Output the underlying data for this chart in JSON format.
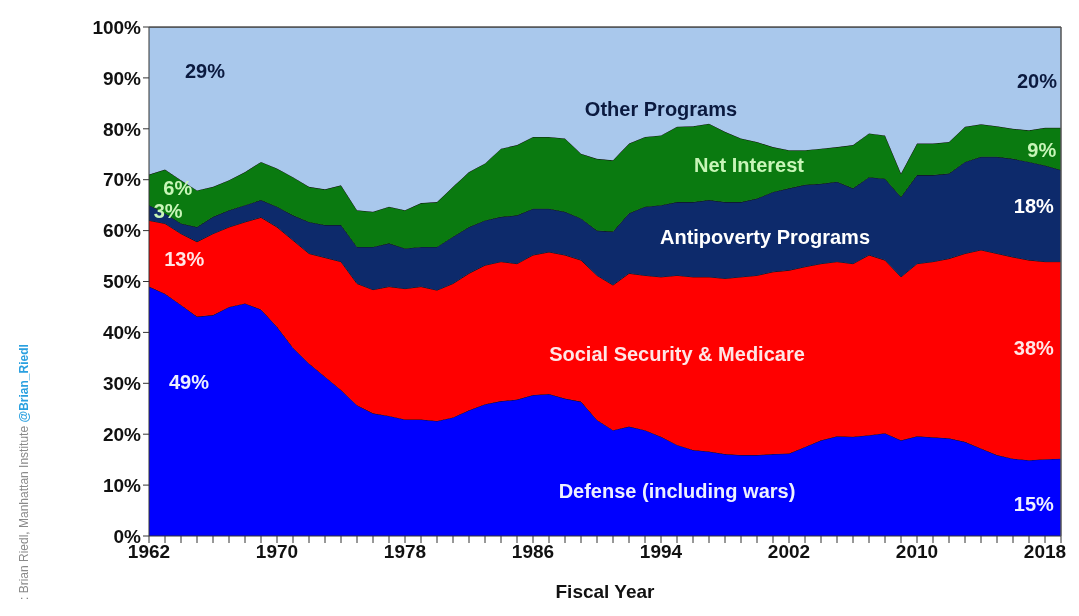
{
  "chart_data": {
    "type": "area",
    "stacked": true,
    "xlabel": "Fiscal Year",
    "xlim": [
      1962,
      2019
    ],
    "xticks": [
      1962,
      {
        "value": 1963,
        "label": null
      },
      {
        "value": 1964,
        "label": null
      },
      {
        "value": 1965,
        "label": null
      },
      {
        "value": 1966,
        "label": null
      },
      {
        "value": 1967,
        "label": null
      },
      {
        "value": 1968,
        "label": null
      },
      {
        "value": 1969,
        "label": null
      },
      1970,
      {
        "value": 1971,
        "label": null
      },
      {
        "value": 1972,
        "label": null
      },
      {
        "value": 1973,
        "label": null
      },
      {
        "value": 1974,
        "label": null
      },
      {
        "value": 1975,
        "label": null
      },
      {
        "value": 1976,
        "label": null
      },
      {
        "value": 1977,
        "label": null
      },
      1978,
      {
        "value": 1979,
        "label": null
      },
      {
        "value": 1980,
        "label": null
      },
      {
        "value": 1981,
        "label": null
      },
      {
        "value": 1982,
        "label": null
      },
      {
        "value": 1983,
        "label": null
      },
      {
        "value": 1984,
        "label": null
      },
      {
        "value": 1985,
        "label": null
      },
      1986,
      {
        "value": 1987,
        "label": null
      },
      {
        "value": 1988,
        "label": null
      },
      {
        "value": 1989,
        "label": null
      },
      {
        "value": 1990,
        "label": null
      },
      {
        "value": 1991,
        "label": null
      },
      {
        "value": 1992,
        "label": null
      },
      {
        "value": 1993,
        "label": null
      },
      1994,
      {
        "value": 1995,
        "label": null
      },
      {
        "value": 1996,
        "label": null
      },
      {
        "value": 1997,
        "label": null
      },
      {
        "value": 1998,
        "label": null
      },
      {
        "value": 1999,
        "label": null
      },
      {
        "value": 2000,
        "label": null
      },
      {
        "value": 2001,
        "label": null
      },
      2002,
      {
        "value": 2003,
        "label": null
      },
      {
        "value": 2004,
        "label": null
      },
      {
        "value": 2005,
        "label": null
      },
      {
        "value": 2006,
        "label": null
      },
      {
        "value": 2007,
        "label": null
      },
      {
        "value": 2008,
        "label": null
      },
      {
        "value": 2009,
        "label": null
      },
      2010,
      {
        "value": 2011,
        "label": null
      },
      {
        "value": 2012,
        "label": null
      },
      {
        "value": 2013,
        "label": null
      },
      {
        "value": 2014,
        "label": null
      },
      {
        "value": 2015,
        "label": null
      },
      {
        "value": 2016,
        "label": null
      },
      {
        "value": 2017,
        "label": null
      },
      2018,
      {
        "value": 2019,
        "label": null
      }
    ],
    "ylim": [
      0,
      100
    ],
    "yticks": [
      {
        "value": 0,
        "label": "0%"
      },
      {
        "value": 10,
        "label": "10%"
      },
      {
        "value": 20,
        "label": "20%"
      },
      {
        "value": 30,
        "label": "30%"
      },
      {
        "value": 40,
        "label": "40%"
      },
      {
        "value": 50,
        "label": "50%"
      },
      {
        "value": 60,
        "label": "60%"
      },
      {
        "value": 70,
        "label": "70%"
      },
      {
        "value": 80,
        "label": "80%"
      },
      {
        "value": 90,
        "label": "90%"
      },
      {
        "value": 100,
        "label": "100%"
      }
    ],
    "x": [
      1962,
      1963,
      1964,
      1965,
      1966,
      1967,
      1968,
      1969,
      1970,
      1971,
      1972,
      1973,
      1974,
      1975,
      1976,
      1977,
      1978,
      1979,
      1980,
      1981,
      1982,
      1983,
      1984,
      1985,
      1986,
      1987,
      1988,
      1989,
      1990,
      1991,
      1992,
      1993,
      1994,
      1995,
      1996,
      1997,
      1998,
      1999,
      2000,
      2001,
      2002,
      2003,
      2004,
      2005,
      2006,
      2007,
      2008,
      2009,
      2010,
      2011,
      2012,
      2013,
      2014,
      2015,
      2016,
      2017,
      2018,
      2019
    ],
    "series": [
      {
        "name": "Defense (including wars)",
        "color": "#0000ff",
        "values": [
          49,
          47.6,
          45.4,
          43.1,
          43.4,
          45.0,
          45.7,
          44.5,
          41.1,
          37.0,
          33.9,
          31.3,
          28.7,
          25.7,
          24.1,
          23.6,
          22.9,
          22.9,
          22.6,
          23.3,
          24.7,
          25.9,
          26.5,
          26.8,
          27.7,
          27.9,
          27.0,
          26.4,
          22.8,
          20.8,
          21.5,
          20.8,
          19.5,
          17.9,
          16.9,
          16.6,
          16.1,
          15.9,
          15.9,
          16.1,
          16.2,
          17.5,
          18.8,
          19.6,
          19.5,
          19.8,
          20.2,
          18.8,
          19.6,
          19.4,
          19.2,
          18.5,
          17.2,
          15.9,
          15.2,
          14.9,
          15.1,
          15.2
        ]
      },
      {
        "name": "Social Security & Medicare",
        "color": "#ff0000",
        "values": [
          13,
          13.8,
          14.0,
          14.7,
          16.0,
          15.7,
          16.0,
          18.1,
          19.6,
          21.1,
          21.6,
          23.4,
          25.2,
          23.9,
          24.3,
          25.4,
          25.7,
          26.1,
          25.7,
          26.3,
          26.9,
          27.3,
          27.4,
          26.7,
          27.5,
          27.9,
          28.2,
          27.8,
          28.4,
          28.5,
          30.1,
          30.4,
          31.4,
          33.3,
          34.0,
          34.3,
          34.5,
          35.0,
          35.3,
          35.8,
          36.0,
          35.4,
          34.7,
          34.3,
          34.0,
          35.4,
          34.0,
          32.1,
          33.9,
          34.5,
          35.3,
          37.0,
          39.0,
          39.6,
          39.6,
          39.3,
          38.8,
          38.7
        ]
      },
      {
        "name": "Antipoverty Programs",
        "color": "#0d2a6b",
        "values": [
          3,
          2.0,
          2.0,
          2.9,
          3.3,
          3.3,
          3.3,
          3.4,
          4.0,
          4.9,
          6.2,
          6.4,
          7.2,
          7.2,
          8.4,
          8.5,
          7.9,
          7.8,
          8.5,
          9.2,
          9.1,
          8.8,
          8.8,
          9.5,
          9.1,
          8.5,
          8.5,
          8.2,
          8.8,
          10.5,
          11.8,
          13.5,
          14.1,
          14.4,
          14.7,
          15.1,
          15.0,
          14.7,
          15.1,
          15.7,
          16.1,
          16.1,
          15.7,
          15.7,
          14.8,
          15.3,
          16.0,
          15.7,
          17.4,
          17.0,
          16.7,
          18.0,
          18.3,
          19.0,
          19.3,
          19.3,
          18.9,
          18.0
        ]
      },
      {
        "name": "Net Interest",
        "color": "#0a7a10",
        "values": [
          6,
          8.6,
          8.5,
          7.2,
          5.9,
          5.9,
          6.5,
          7.5,
          7.5,
          7.5,
          6.9,
          7.0,
          7.8,
          7.2,
          6.9,
          7.2,
          7.5,
          8.6,
          8.8,
          9.8,
          10.8,
          11.2,
          13.4,
          13.8,
          14.1,
          14.1,
          14.4,
          12.7,
          14.1,
          14.0,
          13.7,
          13.7,
          13.7,
          14.8,
          14.9,
          15.0,
          13.8,
          12.5,
          11.1,
          8.8,
          7.5,
          6.8,
          6.9,
          6.8,
          8.5,
          8.6,
          8.5,
          4.6,
          6.2,
          6.2,
          6.2,
          6.9,
          6.4,
          6.0,
          5.9,
          6.2,
          7.4,
          8.3
        ]
      },
      {
        "name": "Other Programs",
        "color": "#a9c8ec",
        "values": [
          29,
          28.0,
          30.1,
          32.1,
          31.4,
          30.1,
          28.5,
          26.5,
          27.8,
          29.5,
          31.4,
          31.9,
          31.1,
          36.0,
          36.3,
          35.3,
          36.0,
          34.6,
          34.4,
          31.4,
          28.5,
          26.8,
          23.9,
          23.2,
          21.6,
          21.6,
          21.9,
          24.9,
          25.9,
          26.2,
          22.9,
          21.6,
          21.3,
          19.6,
          19.5,
          19.0,
          20.6,
          21.9,
          22.6,
          23.6,
          24.2,
          24.2,
          23.9,
          23.6,
          23.2,
          20.9,
          21.3,
          28.8,
          22.9,
          22.9,
          22.6,
          19.6,
          19.1,
          19.5,
          20.0,
          20.3,
          19.8,
          19.8
        ]
      }
    ],
    "annotations": [
      "49%",
      "13%",
      "3%",
      "6%",
      "29%",
      "15%",
      "38%",
      "18%",
      "9%",
      "20%",
      ": Brian Riedl, Manhattan Institute ",
      "@Brian_Riedl"
    ]
  }
}
